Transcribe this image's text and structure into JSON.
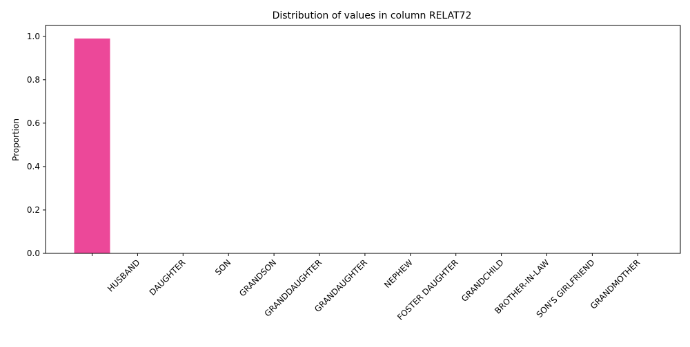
{
  "chart_data": {
    "type": "bar",
    "title": "Distribution of values in column RELAT72",
    "xlabel": "",
    "ylabel": "Proportion",
    "ylim": [
      0,
      1.05
    ],
    "yticks": [
      "0.0",
      "0.2",
      "0.4",
      "0.6",
      "0.8",
      "1.0"
    ],
    "categories": [
      "",
      "HUSBAND",
      "DAUGHTER",
      "SON",
      "GRANDSON",
      "GRANDDAUGHTER",
      "GRANDAUGHTER",
      "NEPHEW",
      "FOSTER DAUGHTER",
      "GRANDCHILD",
      "BROTHER-IN-LAW",
      "SON'S GIRLFRIEND",
      "GRANDMOTHER"
    ],
    "values": [
      0.99,
      0,
      0,
      0,
      0,
      0,
      0,
      0,
      0,
      0,
      0,
      0,
      0
    ],
    "bar_color": "#ec4899",
    "grid": false,
    "legend": "none"
  }
}
